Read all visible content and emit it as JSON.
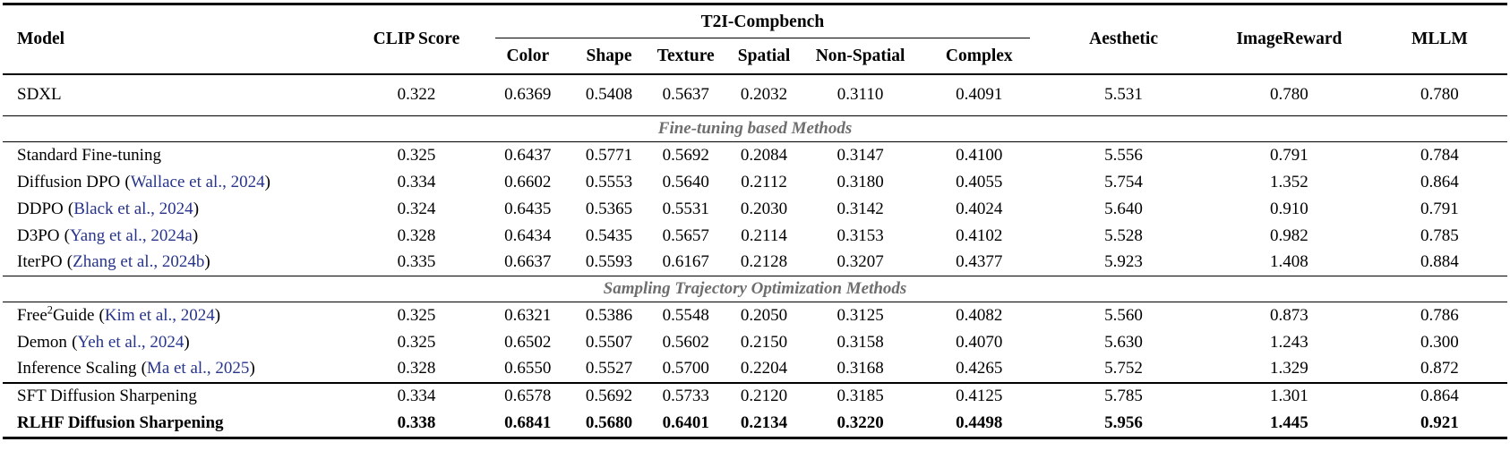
{
  "colors": {
    "citation_link": "#27348b",
    "section_heading": "#6e6e6e",
    "rule": "#000000",
    "background": "#ffffff"
  },
  "punctuation": {
    "cite_open": "(",
    "cite_close": ")"
  },
  "table": {
    "header": {
      "model": "Model",
      "clip": "CLIP Score",
      "group": "T2I-Compbench",
      "subcolumns": [
        "Color",
        "Shape",
        "Texture",
        "Spatial",
        "Non-Spatial",
        "Complex"
      ],
      "aesthetic": "Aesthetic",
      "image_reward": "ImageReward",
      "mllm": "MLLM"
    },
    "rows": [
      {
        "type": "data",
        "tall": true,
        "bold": false,
        "rule_top": false,
        "model": {
          "pre": "SDXL",
          "sup": "",
          "post": "",
          "cite": ""
        },
        "values": [
          "0.322",
          "0.6369",
          "0.5408",
          "0.5637",
          "0.2032",
          "0.3110",
          "0.4091",
          "5.531",
          "0.780",
          "0.780"
        ]
      },
      {
        "type": "section",
        "label": "Fine-tuning based Methods"
      },
      {
        "type": "data",
        "tall": false,
        "bold": false,
        "rule_top": false,
        "model": {
          "pre": "Standard Fine-tuning",
          "sup": "",
          "post": "",
          "cite": ""
        },
        "values": [
          "0.325",
          "0.6437",
          "0.5771",
          "0.5692",
          "0.2084",
          "0.3147",
          "0.4100",
          "5.556",
          "0.791",
          "0.784"
        ]
      },
      {
        "type": "data",
        "tall": false,
        "bold": false,
        "rule_top": false,
        "model": {
          "pre": "Diffusion DPO",
          "sup": "",
          "post": "",
          "cite": "Wallace et al., 2024"
        },
        "values": [
          "0.334",
          "0.6602",
          "0.5553",
          "0.5640",
          "0.2112",
          "0.3180",
          "0.4055",
          "5.754",
          "1.352",
          "0.864"
        ]
      },
      {
        "type": "data",
        "tall": false,
        "bold": false,
        "rule_top": false,
        "model": {
          "pre": "DDPO",
          "sup": "",
          "post": "",
          "cite": "Black et al., 2024"
        },
        "values": [
          "0.324",
          "0.6435",
          "0.5365",
          "0.5531",
          "0.2030",
          "0.3142",
          "0.4024",
          "5.640",
          "0.910",
          "0.791"
        ]
      },
      {
        "type": "data",
        "tall": false,
        "bold": false,
        "rule_top": false,
        "model": {
          "pre": "D3PO",
          "sup": "",
          "post": "",
          "cite": "Yang et al., 2024a"
        },
        "values": [
          "0.328",
          "0.6434",
          "0.5435",
          "0.5657",
          "0.2114",
          "0.3153",
          "0.4102",
          "5.528",
          "0.982",
          "0.785"
        ]
      },
      {
        "type": "data",
        "tall": false,
        "bold": false,
        "rule_top": false,
        "model": {
          "pre": "IterPO",
          "sup": "",
          "post": "",
          "cite": "Zhang et al., 2024b"
        },
        "values": [
          "0.335",
          "0.6637",
          "0.5593",
          "0.6167",
          "0.2128",
          "0.3207",
          "0.4377",
          "5.923",
          "1.408",
          "0.884"
        ]
      },
      {
        "type": "section",
        "label": "Sampling Trajectory Optimization Methods"
      },
      {
        "type": "data",
        "tall": false,
        "bold": false,
        "rule_top": false,
        "model": {
          "pre": "Free",
          "sup": "2",
          "post": "Guide",
          "cite": "Kim et al., 2024"
        },
        "values": [
          "0.325",
          "0.6321",
          "0.5386",
          "0.5548",
          "0.2050",
          "0.3125",
          "0.4082",
          "5.560",
          "0.873",
          "0.786"
        ]
      },
      {
        "type": "data",
        "tall": false,
        "bold": false,
        "rule_top": false,
        "model": {
          "pre": "Demon",
          "sup": "",
          "post": "",
          "cite": "Yeh et al., 2024"
        },
        "values": [
          "0.325",
          "0.6502",
          "0.5507",
          "0.5602",
          "0.2150",
          "0.3158",
          "0.4070",
          "5.630",
          "1.243",
          "0.300"
        ]
      },
      {
        "type": "data",
        "tall": false,
        "bold": false,
        "rule_top": false,
        "model": {
          "pre": "Inference Scaling",
          "sup": "",
          "post": "",
          "cite": "Ma et al., 2025"
        },
        "values": [
          "0.328",
          "0.6550",
          "0.5527",
          "0.5700",
          "0.2204",
          "0.3168",
          "0.4265",
          "5.752",
          "1.329",
          "0.872"
        ]
      },
      {
        "type": "data",
        "tall": false,
        "bold": false,
        "rule_top": true,
        "model": {
          "pre": "SFT Diffusion Sharpening",
          "sup": "",
          "post": "",
          "cite": ""
        },
        "values": [
          "0.334",
          "0.6578",
          "0.5692",
          "0.5733",
          "0.2120",
          "0.3185",
          "0.4125",
          "5.785",
          "1.301",
          "0.864"
        ]
      },
      {
        "type": "data",
        "tall": false,
        "bold": true,
        "rule_top": false,
        "model": {
          "pre": "RLHF Diffusion Sharpening",
          "sup": "",
          "post": "",
          "cite": ""
        },
        "values": [
          "0.338",
          "0.6841",
          "0.5680",
          "0.6401",
          "0.2134",
          "0.3220",
          "0.4498",
          "5.956",
          "1.445",
          "0.921"
        ]
      }
    ]
  }
}
